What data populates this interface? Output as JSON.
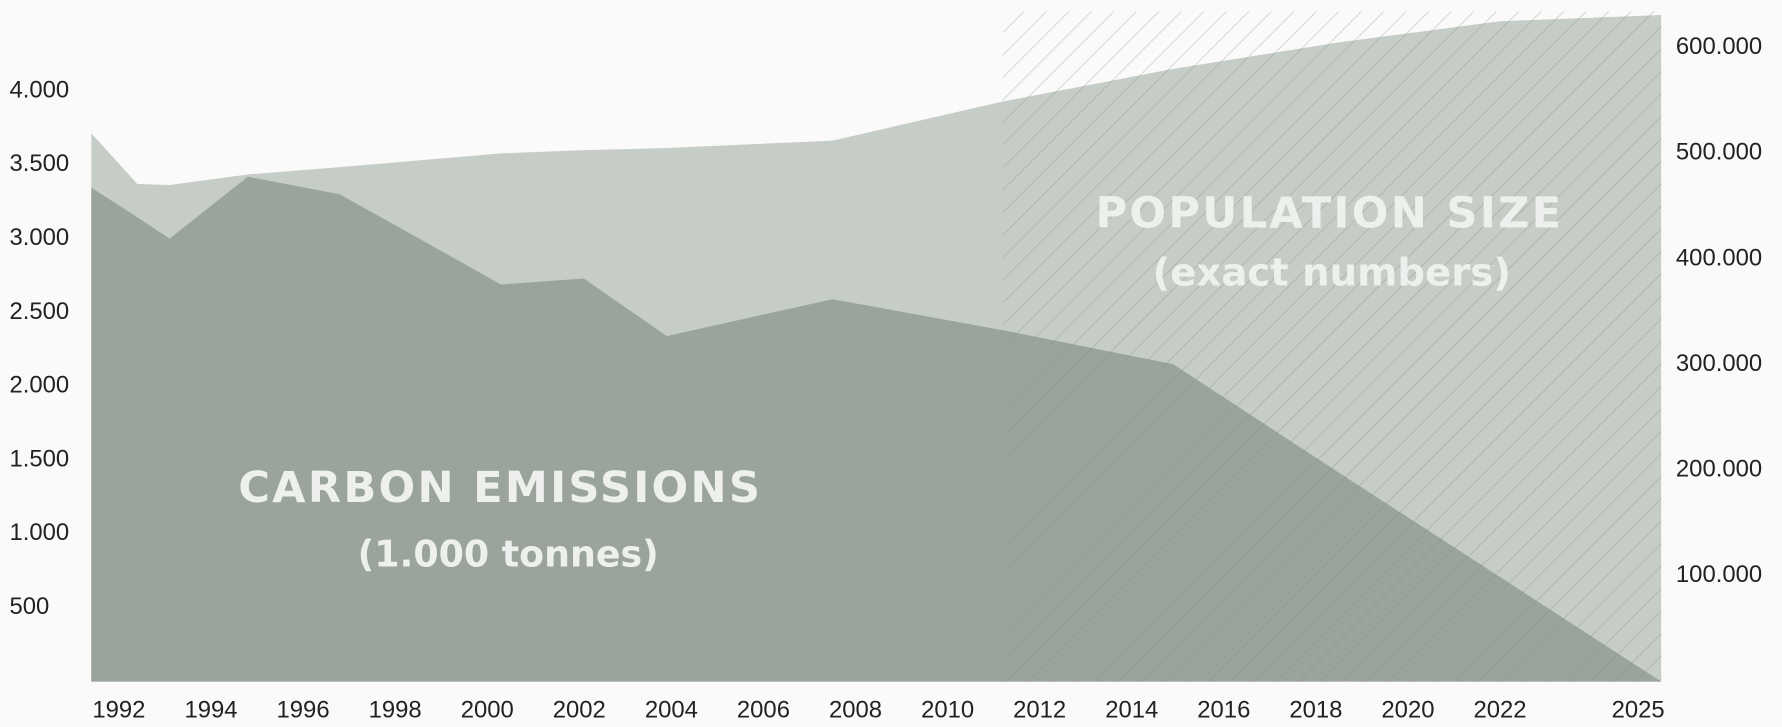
{
  "chart_data": {
    "type": "area",
    "annotations": [
      "CARBON EMISSIONS",
      "(1.000 tonnes)",
      "POPULATION SIZE",
      "(exact numbers)"
    ],
    "x": [
      1991.4,
      1992.4,
      1993.1,
      1994.8,
      1996.8,
      2000.3,
      2002.1,
      2003.9,
      2007.5,
      2011.2,
      2014.9,
      2018.5,
      2022,
      2025.5
    ],
    "series": [
      {
        "name": "POPULATION SIZE",
        "color": "#c6ccc6",
        "axis": "y2",
        "values": [
          519000,
          471000,
          470000,
          480000,
          487000,
          500000,
          503000,
          505000,
          512000,
          549000,
          580000,
          605000,
          625000,
          631000
        ]
      },
      {
        "name": "CARBON EMISSIONS",
        "color": "#9ba49c",
        "values": [
          3346,
          3146,
          3000,
          3420,
          3300,
          2690,
          2730,
          2340,
          2590,
          2380,
          2150,
          1415,
          708,
          0
        ]
      }
    ],
    "projection_start": 2011.2,
    "xlim": [
      1991.4,
      2025.5
    ],
    "xticks": [
      1992,
      1994,
      1996,
      1998,
      2000,
      2002,
      2004,
      2006,
      2008,
      2010,
      2012,
      2014,
      2016,
      2018,
      2020,
      2022,
      2025
    ],
    "ylim": [
      0,
      4540
    ],
    "yticks": [
      500,
      {
        "value": 1000,
        "label": "1.000"
      },
      {
        "value": 1500,
        "label": "1.500"
      },
      {
        "value": 2000,
        "label": "2.000"
      },
      {
        "value": 2500,
        "label": "2.500"
      },
      {
        "value": 3000,
        "label": "3.000"
      },
      {
        "value": 3500,
        "label": "3.500"
      },
      {
        "value": 4000,
        "label": "4.000"
      }
    ],
    "y2lim": [
      0,
      634400
    ],
    "y2ticks": [
      {
        "value": 100000,
        "label": "100.000"
      },
      {
        "value": 200000,
        "label": "200.000"
      },
      {
        "value": 300000,
        "label": "300.000"
      },
      {
        "value": 400000,
        "label": "400.000"
      },
      {
        "value": 500000,
        "label": "500.000"
      },
      {
        "value": 600000,
        "label": "600.000"
      }
    ],
    "grid": false
  }
}
